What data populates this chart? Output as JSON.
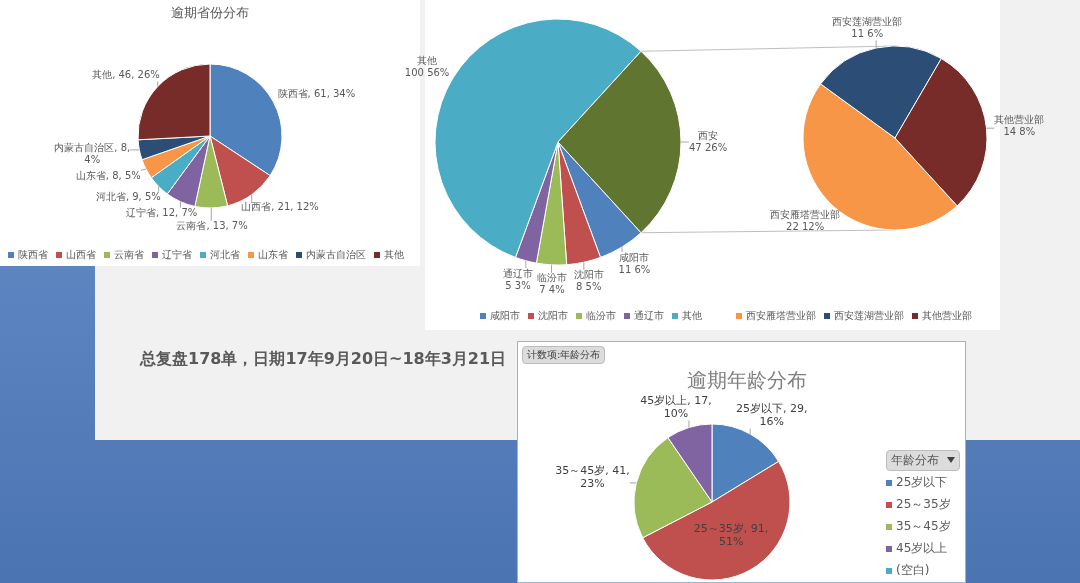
{
  "chart_data": [
    {
      "type": "pie",
      "title": "逾期省份分布",
      "categories": [
        "陕西省",
        "山西省",
        "云南省",
        "辽宁省",
        "河北省",
        "山东省",
        "内蒙古自治区",
        "其他"
      ],
      "values": [
        61,
        21,
        13,
        12,
        9,
        8,
        8,
        46
      ],
      "colors": [
        "#4f81bd",
        "#c0504d",
        "#9bbb59",
        "#8064a2",
        "#4bacc6",
        "#f79646",
        "#2c4d75",
        "#772c2a"
      ],
      "value_labels": [
        "陕西省, 61, 34%",
        "山西省, 21, 12%",
        "云南省, 13, 7%",
        "辽宁省, 12, 7%",
        "河北省, 9, 5%",
        "山东省, 8, 5%",
        "内蒙古自治区, 8, 4%",
        "其他, 46, 26%"
      ],
      "legend": "bottom",
      "annotations": [
        "总复盘178单，日期17年9月20日~18年3月21日"
      ]
    },
    {
      "type": "pie",
      "categories": [
        "咸阳市",
        "沈阳市",
        "临汾市",
        "通辽市",
        "其他",
        "西安"
      ],
      "values": [
        11,
        8,
        7,
        5,
        100,
        47
      ],
      "colors": [
        "#4f81bd",
        "#c0504d",
        "#9bbb59",
        "#8064a2",
        "#4bacc6",
        "#5f7530"
      ],
      "value_labels": [
        "11 6%",
        "8 5%",
        "7 4%",
        "5 3%",
        "100 56%",
        "47 26%"
      ],
      "legend": "bottom"
    },
    {
      "type": "pie",
      "categories": [
        "西安雁塔营业部",
        "西安莲湖营业部",
        "其他营业部"
      ],
      "values": [
        22,
        11,
        14
      ],
      "colors": [
        "#f79646",
        "#2c4d75",
        "#772c2a"
      ],
      "value_labels": [
        "22 12%",
        "11 6%",
        "14 8%"
      ],
      "legend": "bottom"
    },
    {
      "type": "pie",
      "title": "逾期年龄分布",
      "categories": [
        "25岁以下",
        "25～35岁",
        "35～45岁",
        "45岁以上",
        "(空白)"
      ],
      "values": [
        29,
        91,
        41,
        17,
        null
      ],
      "colors": [
        "#4f81bd",
        "#c0504d",
        "#9bbb59",
        "#8064a2",
        "#4bacc6"
      ],
      "value_labels": [
        "25岁以下, 29, 16%",
        "25～35岁, 91, 51%",
        "35～45岁, 41, 23%",
        "45岁以上, 17, 10%",
        null
      ],
      "legend": "right",
      "legend_title": "年龄分布",
      "annotations": [
        "计数项:年龄分布"
      ]
    }
  ]
}
